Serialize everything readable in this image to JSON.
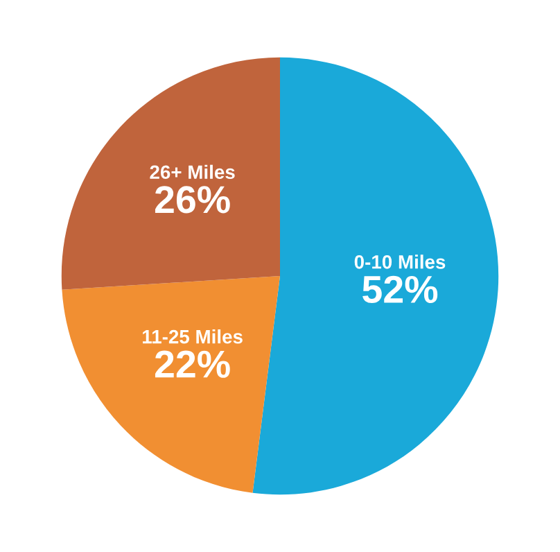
{
  "chart_data": {
    "type": "pie",
    "categories": [
      "0-10 Miles",
      "11-25 Miles",
      "26+ Miles"
    ],
    "values": [
      52,
      22,
      26
    ],
    "colors": [
      "#1aa9d9",
      "#f18f32",
      "#c0643c"
    ],
    "value_labels": [
      "52%",
      "22%",
      "26%"
    ]
  }
}
